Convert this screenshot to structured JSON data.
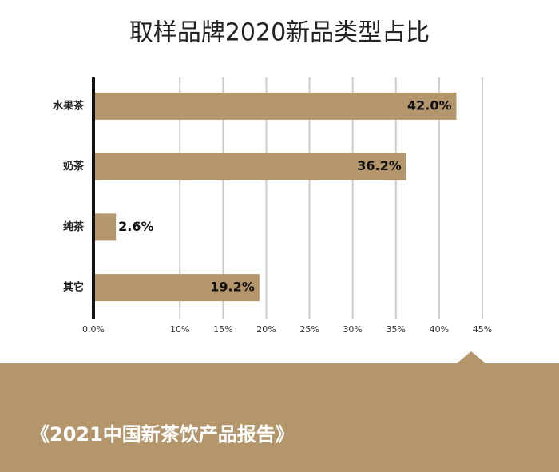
{
  "chart_data": {
    "type": "bar",
    "orientation": "horizontal",
    "title": "取样品牌2020新品类型占比",
    "categories": [
      "水果茶",
      "奶茶",
      "纯茶",
      "其它"
    ],
    "values": [
      42.0,
      36.2,
      2.6,
      19.2
    ],
    "value_labels": [
      "42.0%",
      "36.2%",
      "2.6%",
      "19.2%"
    ],
    "color": "#b3966b",
    "xlim": [
      0,
      45
    ],
    "xticks": [
      {
        "value": 0,
        "label": "0.0%"
      },
      {
        "value": 10,
        "label": "10%"
      },
      {
        "value": 15,
        "label": "15%"
      },
      {
        "value": 20,
        "label": "20%"
      },
      {
        "value": 25,
        "label": "25%"
      },
      {
        "value": 30,
        "label": "30%"
      },
      {
        "value": 35,
        "label": "35%"
      },
      {
        "value": 40,
        "label": "40%"
      },
      {
        "value": 45,
        "label": "45%"
      }
    ],
    "grid": true,
    "footer": "《2021中国新茶饮产品报告》"
  }
}
